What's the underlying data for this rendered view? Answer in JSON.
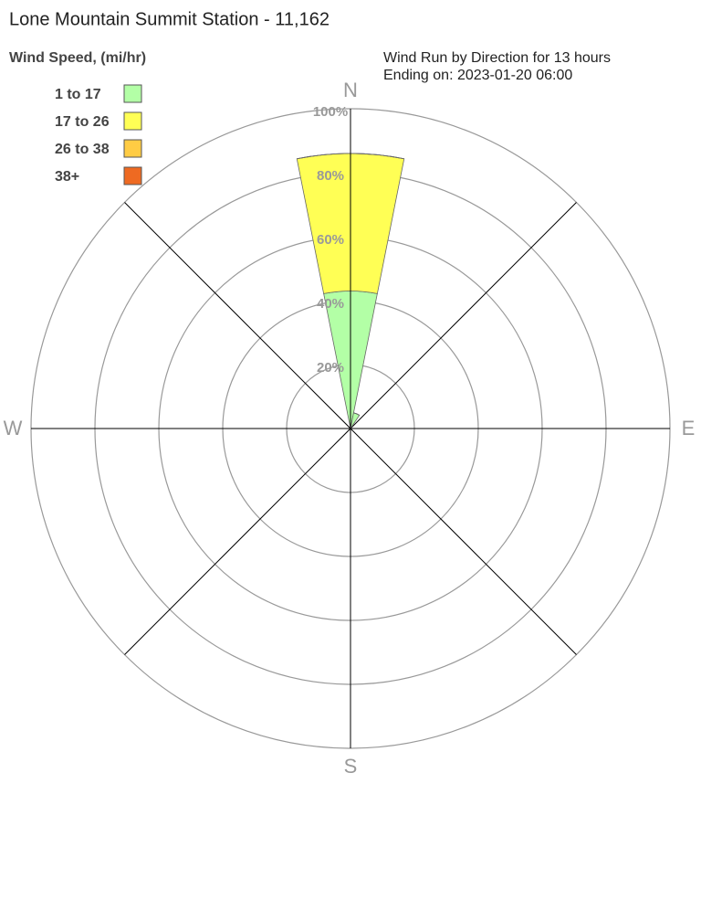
{
  "chart_data": {
    "type": "windrose",
    "title": "Lone Mountain Summit Station - 11,162",
    "legend_title": "Wind Speed, (mi/hr)",
    "subtitle": [
      "Wind Run by Direction for 13 hours",
      "Ending on: 2023-01-20 06:00"
    ],
    "categories": [
      "N",
      null,
      null,
      null,
      "E",
      null,
      null,
      null,
      "S",
      null,
      null,
      null,
      "W",
      null,
      null,
      null
    ],
    "series": [
      {
        "name": "1 to 17",
        "color": "#b3ffa6",
        "values": [
          43,
          5,
          0,
          0,
          0,
          0,
          0,
          0,
          0,
          0,
          0,
          0,
          0,
          0,
          0,
          0
        ]
      },
      {
        "name": "17 to 26",
        "color": "#ffff55",
        "values": [
          43,
          0,
          0,
          0,
          0,
          0,
          0,
          0,
          0,
          0,
          0,
          0,
          0,
          0,
          0,
          0
        ]
      },
      {
        "name": "26 to 38",
        "color": "#ffcc44",
        "values": [
          0,
          0,
          0,
          0,
          0,
          0,
          0,
          0,
          0,
          0,
          0,
          0,
          0,
          0,
          0,
          0
        ]
      },
      {
        "name": "38+",
        "color": "#ee6a22",
        "values": [
          0,
          0,
          0,
          0,
          0,
          0,
          0,
          0,
          0,
          0,
          0,
          0,
          0,
          0,
          0,
          0
        ]
      }
    ],
    "rlim": [
      0,
      100
    ],
    "rticks": [
      {
        "value": 20,
        "label": "20%"
      },
      {
        "value": 40,
        "label": "40%"
      },
      {
        "value": 60,
        "label": "60%"
      },
      {
        "value": 80,
        "label": "80%"
      },
      {
        "value": 100,
        "label": "100%"
      }
    ]
  }
}
